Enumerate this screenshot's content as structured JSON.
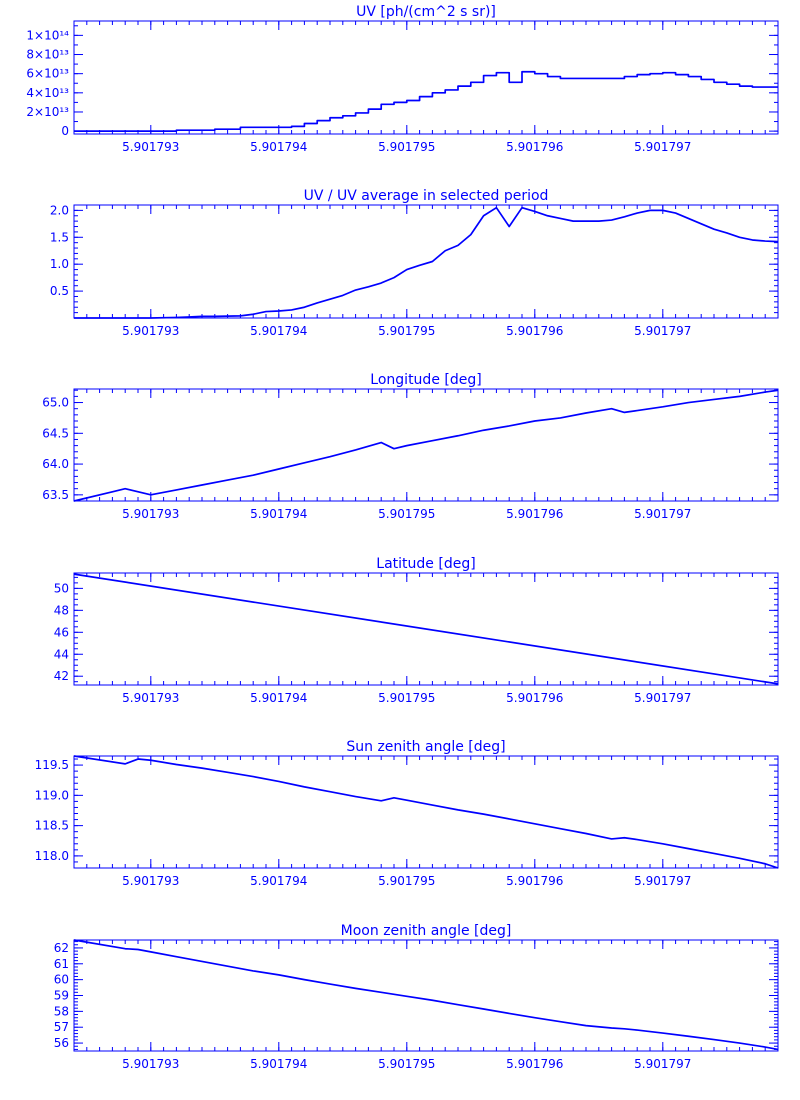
{
  "style": {
    "color": "#0000ff",
    "background": "#ffffff"
  },
  "chart_data": [
    {
      "type": "line",
      "step": true,
      "title": "UV [ph/(cm^2 s sr)]",
      "x_ticks": [
        "5.901793",
        "5.901794",
        "5.901795",
        "5.901796",
        "5.901797"
      ],
      "y_ticks": [
        "0",
        "2×10¹³",
        "4×10¹³",
        "6×10¹³",
        "8×10¹³",
        "1×10¹⁴"
      ],
      "x_range": [
        5.9017924,
        5.9017979
      ],
      "y_range": [
        -3000000000000.0,
        115000000000000.0
      ],
      "series": [
        {
          "x": [
            5.9017924,
            5.9017927,
            5.901793,
            5.9017932,
            5.9017934,
            5.9017935,
            5.9017937,
            5.9017938,
            5.9017939,
            5.901794,
            5.9017941,
            5.9017942,
            5.9017943,
            5.9017944,
            5.9017945,
            5.9017946,
            5.9017947,
            5.9017948,
            5.9017949,
            5.901795,
            5.9017951,
            5.9017952,
            5.9017953,
            5.9017954,
            5.9017955,
            5.9017956,
            5.9017957,
            5.9017958,
            5.9017959,
            5.901796,
            5.9017961,
            5.9017962,
            5.9017963,
            5.9017964,
            5.9017965,
            5.9017966,
            5.9017967,
            5.9017968,
            5.9017969,
            5.901797,
            5.9017971,
            5.9017972,
            5.9017973,
            5.9017974,
            5.9017975,
            5.9017976,
            5.9017977,
            5.9017978,
            5.9017979
          ],
          "values": [
            0,
            0,
            0,
            1000000000000.0,
            1000000000000.0,
            2000000000000.0,
            4000000000000.0,
            4000000000000.0,
            4000000000000.0,
            4000000000000.0,
            5000000000000.0,
            8000000000000.0,
            11000000000000.0,
            14000000000000.0,
            16000000000000.0,
            19000000000000.0,
            23000000000000.0,
            28000000000000.0,
            30000000000000.0,
            32000000000000.0,
            36000000000000.0,
            40000000000000.0,
            43000000000000.0,
            47000000000000.0,
            51000000000000.0,
            58000000000000.0,
            61000000000000.0,
            51000000000000.0,
            62000000000000.0,
            60000000000000.0,
            57000000000000.0,
            55000000000000.0,
            55000000000000.0,
            55000000000000.0,
            55000000000000.0,
            55000000000000.0,
            57000000000000.0,
            59000000000000.0,
            60000000000000.0,
            61000000000000.0,
            59000000000000.0,
            57000000000000.0,
            54000000000000.0,
            51000000000000.0,
            49000000000000.0,
            47000000000000.0,
            46000000000000.0,
            46000000000000.0,
            46000000000000.0
          ]
        }
      ]
    },
    {
      "type": "line",
      "title": "UV / UV average in selected period",
      "x_ticks": [
        "5.901793",
        "5.901794",
        "5.901795",
        "5.901796",
        "5.901797"
      ],
      "y_ticks": [
        "0.5",
        "1.0",
        "1.5",
        "2.0"
      ],
      "x_range": [
        5.9017924,
        5.9017979
      ],
      "y_range": [
        0.0,
        2.1
      ],
      "series": [
        {
          "x": [
            5.9017924,
            5.9017927,
            5.901793,
            5.9017932,
            5.9017933,
            5.9017934,
            5.9017935,
            5.9017937,
            5.9017938,
            5.9017939,
            5.901794,
            5.9017941,
            5.9017942,
            5.9017943,
            5.9017944,
            5.9017945,
            5.9017946,
            5.9017947,
            5.9017948,
            5.9017949,
            5.901795,
            5.9017951,
            5.9017952,
            5.9017953,
            5.9017954,
            5.9017955,
            5.9017956,
            5.9017957,
            5.9017958,
            5.9017959,
            5.901796,
            5.9017961,
            5.9017962,
            5.9017963,
            5.9017964,
            5.9017965,
            5.9017966,
            5.9017967,
            5.9017968,
            5.9017969,
            5.901797,
            5.9017971,
            5.9017972,
            5.9017973,
            5.9017974,
            5.9017975,
            5.9017976,
            5.9017977,
            5.9017978,
            5.9017979
          ],
          "values": [
            0,
            0,
            0,
            0.01,
            0.02,
            0.03,
            0.03,
            0.04,
            0.07,
            0.12,
            0.13,
            0.15,
            0.2,
            0.28,
            0.35,
            0.42,
            0.52,
            0.58,
            0.65,
            0.75,
            0.9,
            0.98,
            1.05,
            1.25,
            1.35,
            1.55,
            1.9,
            2.05,
            1.7,
            2.05,
            1.98,
            1.9,
            1.85,
            1.8,
            1.8,
            1.8,
            1.82,
            1.88,
            1.95,
            2.0,
            2.0,
            1.95,
            1.85,
            1.75,
            1.65,
            1.58,
            1.5,
            1.45,
            1.43,
            1.42
          ]
        }
      ]
    },
    {
      "type": "line",
      "title": "Longitude [deg]",
      "x_ticks": [
        "5.901793",
        "5.901794",
        "5.901795",
        "5.901796",
        "5.901797"
      ],
      "y_ticks": [
        "63.5",
        "64.0",
        "64.5",
        "65.0"
      ],
      "x_range": [
        5.9017924,
        5.9017979
      ],
      "y_range": [
        63.4,
        65.22
      ],
      "series": [
        {
          "x": [
            5.9017924,
            5.9017927,
            5.9017928,
            5.901793,
            5.9017932,
            5.9017934,
            5.9017936,
            5.9017938,
            5.901794,
            5.9017942,
            5.9017944,
            5.9017946,
            5.9017948,
            5.9017949,
            5.901795,
            5.9017952,
            5.9017954,
            5.9017956,
            5.9017958,
            5.901796,
            5.9017962,
            5.9017964,
            5.9017966,
            5.9017967,
            5.9017968,
            5.901797,
            5.9017972,
            5.9017974,
            5.9017976,
            5.9017978,
            5.9017979
          ],
          "values": [
            63.4,
            63.55,
            63.6,
            63.5,
            63.58,
            63.66,
            63.74,
            63.82,
            63.92,
            64.02,
            64.12,
            64.23,
            64.35,
            64.25,
            64.3,
            64.38,
            64.46,
            64.55,
            64.62,
            64.7,
            64.75,
            64.83,
            64.9,
            64.84,
            64.87,
            64.93,
            65.0,
            65.05,
            65.1,
            65.17,
            65.2
          ]
        }
      ]
    },
    {
      "type": "line",
      "title": "Latitude [deg]",
      "x_ticks": [
        "5.901793",
        "5.901794",
        "5.901795",
        "5.901796",
        "5.901797"
      ],
      "y_ticks": [
        "42",
        "44",
        "46",
        "48",
        "50"
      ],
      "x_range": [
        5.9017924,
        5.9017979
      ],
      "y_range": [
        41.2,
        51.4
      ],
      "series": [
        {
          "x": [
            5.9017924,
            5.9017979
          ],
          "values": [
            51.3,
            41.3
          ]
        }
      ]
    },
    {
      "type": "line",
      "title": "Sun zenith angle [deg]",
      "x_ticks": [
        "5.901793",
        "5.901794",
        "5.901795",
        "5.901796",
        "5.901797"
      ],
      "y_ticks": [
        "118.0",
        "118.5",
        "119.0",
        "119.5"
      ],
      "x_range": [
        5.9017924,
        5.9017979
      ],
      "y_range": [
        117.8,
        119.65
      ],
      "series": [
        {
          "x": [
            5.9017924,
            5.9017928,
            5.9017929,
            5.901793,
            5.9017932,
            5.9017934,
            5.9017936,
            5.9017938,
            5.901794,
            5.9017942,
            5.9017944,
            5.9017946,
            5.9017948,
            5.9017949,
            5.901795,
            5.9017952,
            5.9017954,
            5.9017956,
            5.9017958,
            5.901796,
            5.9017962,
            5.9017964,
            5.9017966,
            5.9017967,
            5.9017968,
            5.901797,
            5.9017972,
            5.9017974,
            5.9017976,
            5.9017978,
            5.9017979
          ],
          "values": [
            119.65,
            119.52,
            119.6,
            119.58,
            119.51,
            119.45,
            119.38,
            119.31,
            119.23,
            119.14,
            119.06,
            118.98,
            118.91,
            118.96,
            118.92,
            118.84,
            118.76,
            118.69,
            118.61,
            118.53,
            118.45,
            118.37,
            118.28,
            118.3,
            118.27,
            118.2,
            118.12,
            118.04,
            117.96,
            117.87,
            117.8
          ]
        }
      ]
    },
    {
      "type": "line",
      "title": "Moon zenith angle [deg]",
      "x_ticks": [
        "5.901793",
        "5.901794",
        "5.901795",
        "5.901796",
        "5.901797"
      ],
      "y_ticks": [
        "56",
        "57",
        "58",
        "59",
        "60",
        "61",
        "62"
      ],
      "x_range": [
        5.9017924,
        5.9017979
      ],
      "y_range": [
        55.5,
        62.5
      ],
      "series": [
        {
          "x": [
            5.9017924,
            5.9017928,
            5.9017929,
            5.901793,
            5.9017932,
            5.9017934,
            5.9017936,
            5.9017938,
            5.901794,
            5.9017942,
            5.9017944,
            5.9017946,
            5.9017948,
            5.901795,
            5.9017952,
            5.9017954,
            5.9017956,
            5.9017958,
            5.901796,
            5.9017962,
            5.9017964,
            5.9017966,
            5.9017967,
            5.9017968,
            5.901797,
            5.9017972,
            5.9017974,
            5.9017976,
            5.9017978,
            5.9017979
          ],
          "values": [
            62.5,
            61.95,
            61.9,
            61.75,
            61.45,
            61.15,
            60.85,
            60.55,
            60.3,
            60.0,
            59.72,
            59.45,
            59.2,
            58.95,
            58.7,
            58.42,
            58.15,
            57.87,
            57.6,
            57.35,
            57.1,
            56.95,
            56.9,
            56.82,
            56.63,
            56.43,
            56.22,
            56.0,
            55.75,
            55.6
          ]
        }
      ]
    }
  ]
}
